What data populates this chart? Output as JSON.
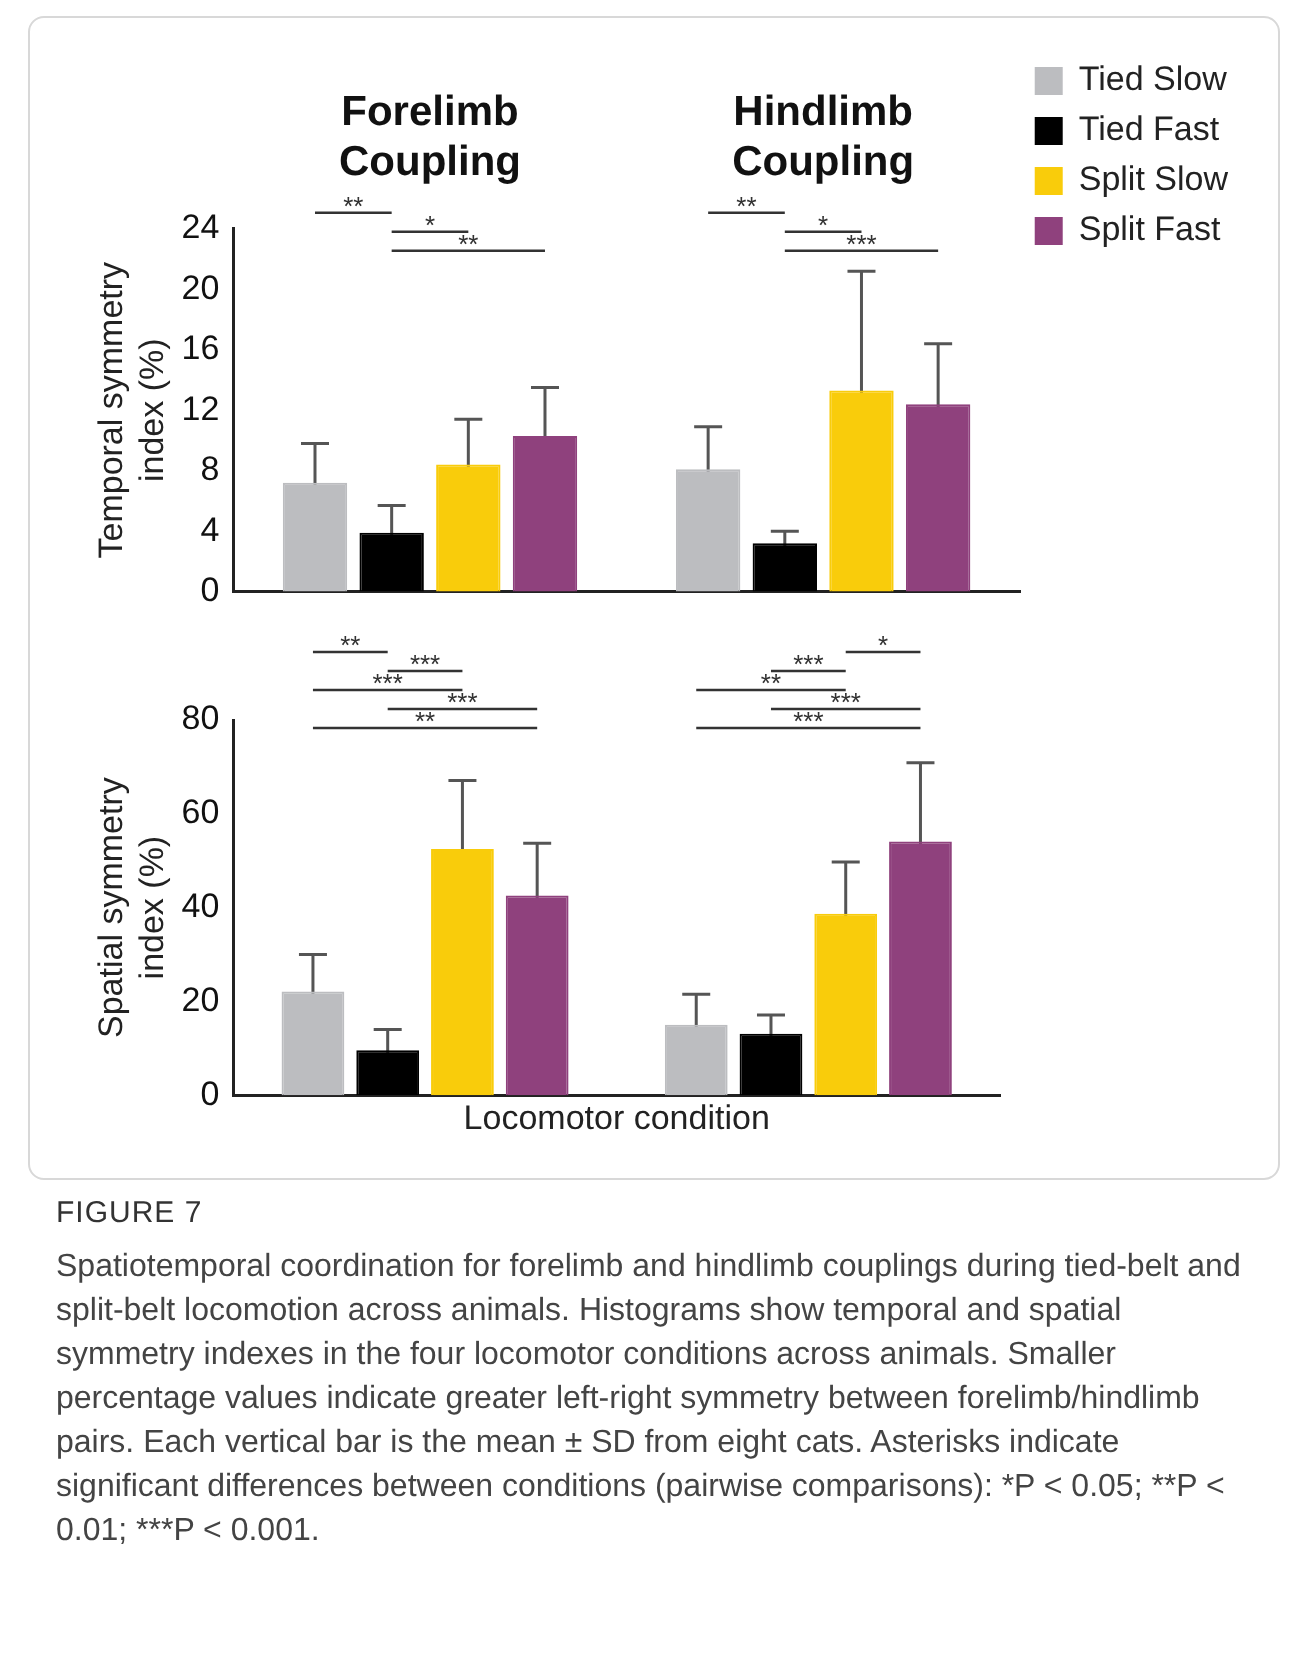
{
  "chart_data": [
    {
      "type": "bar",
      "categories": [
        "Forelimb Coupling",
        "Hindlimb Coupling"
      ],
      "ylabel": "Temporal symmetry index (%)",
      "series": [
        {
          "name": "Tied Slow",
          "color": "#bcbdc0",
          "values": [
            7.2,
            8.1
          ],
          "errors": [
            2.6,
            2.8
          ]
        },
        {
          "name": "Tied Fast",
          "color": "#000000",
          "values": [
            3.9,
            3.2
          ],
          "errors": [
            1.8,
            0.8
          ]
        },
        {
          "name": "Split Slow",
          "color": "#f9cc0b",
          "values": [
            8.4,
            13.3
          ],
          "errors": [
            3.0,
            7.9
          ]
        },
        {
          "name": "Split Fast",
          "color": "#8f417d",
          "values": [
            10.3,
            12.4
          ],
          "errors": [
            3.2,
            4.0
          ]
        }
      ],
      "ylim": [
        0,
        24
      ],
      "yticks": [
        0,
        4,
        8,
        12,
        16,
        20,
        24
      ],
      "grid": false,
      "legend": "top right",
      "annotations": [
        "**",
        "*",
        "**",
        "**",
        "*",
        "***"
      ]
    },
    {
      "type": "bar",
      "categories": [
        null,
        null
      ],
      "xlabel": "Locomotor condition",
      "ylabel": "Spatial symmetry index (%)",
      "series": [
        {
          "color": "#bcbdc0",
          "values": [
            22.1,
            15.0
          ],
          "errors": [
            7.9,
            6.5
          ]
        },
        {
          "color": "#000000",
          "values": [
            9.6,
            13.1
          ],
          "errors": [
            4.4,
            4.0
          ]
        },
        {
          "color": "#f9cc0b",
          "values": [
            52.5,
            38.7
          ],
          "errors": [
            14.6,
            11.0
          ]
        },
        {
          "color": "#8f417d",
          "values": [
            42.6,
            54.1
          ],
          "errors": [
            11.1,
            16.8
          ]
        }
      ],
      "ylim": [
        0,
        80
      ],
      "yticks": [
        0,
        20,
        40,
        60,
        80
      ],
      "grid": false,
      "legend": false,
      "tick_labels": "y",
      "annotations": [
        "**",
        "***",
        "***",
        "***",
        "**",
        "*",
        "***",
        "**",
        "***",
        "***",
        "FIGURE 7",
        "Spatiotemporal coordination for forelimb and hindlimb couplings during tied-belt and split-belt locomotion across animals. Histograms show temporal and spatial symmetry indexes in the four locomotor conditions across animals. Smaller percentage values indicate greater left-right symmetry between forelimb/hindlimb pairs. Each vertical bar is the mean ± SD from eight cats. Asterisks indicate significant differences between conditions (pairwise comparisons): *P < 0.05; **P < 0.01; ***P < 0.001."
      ]
    }
  ]
}
